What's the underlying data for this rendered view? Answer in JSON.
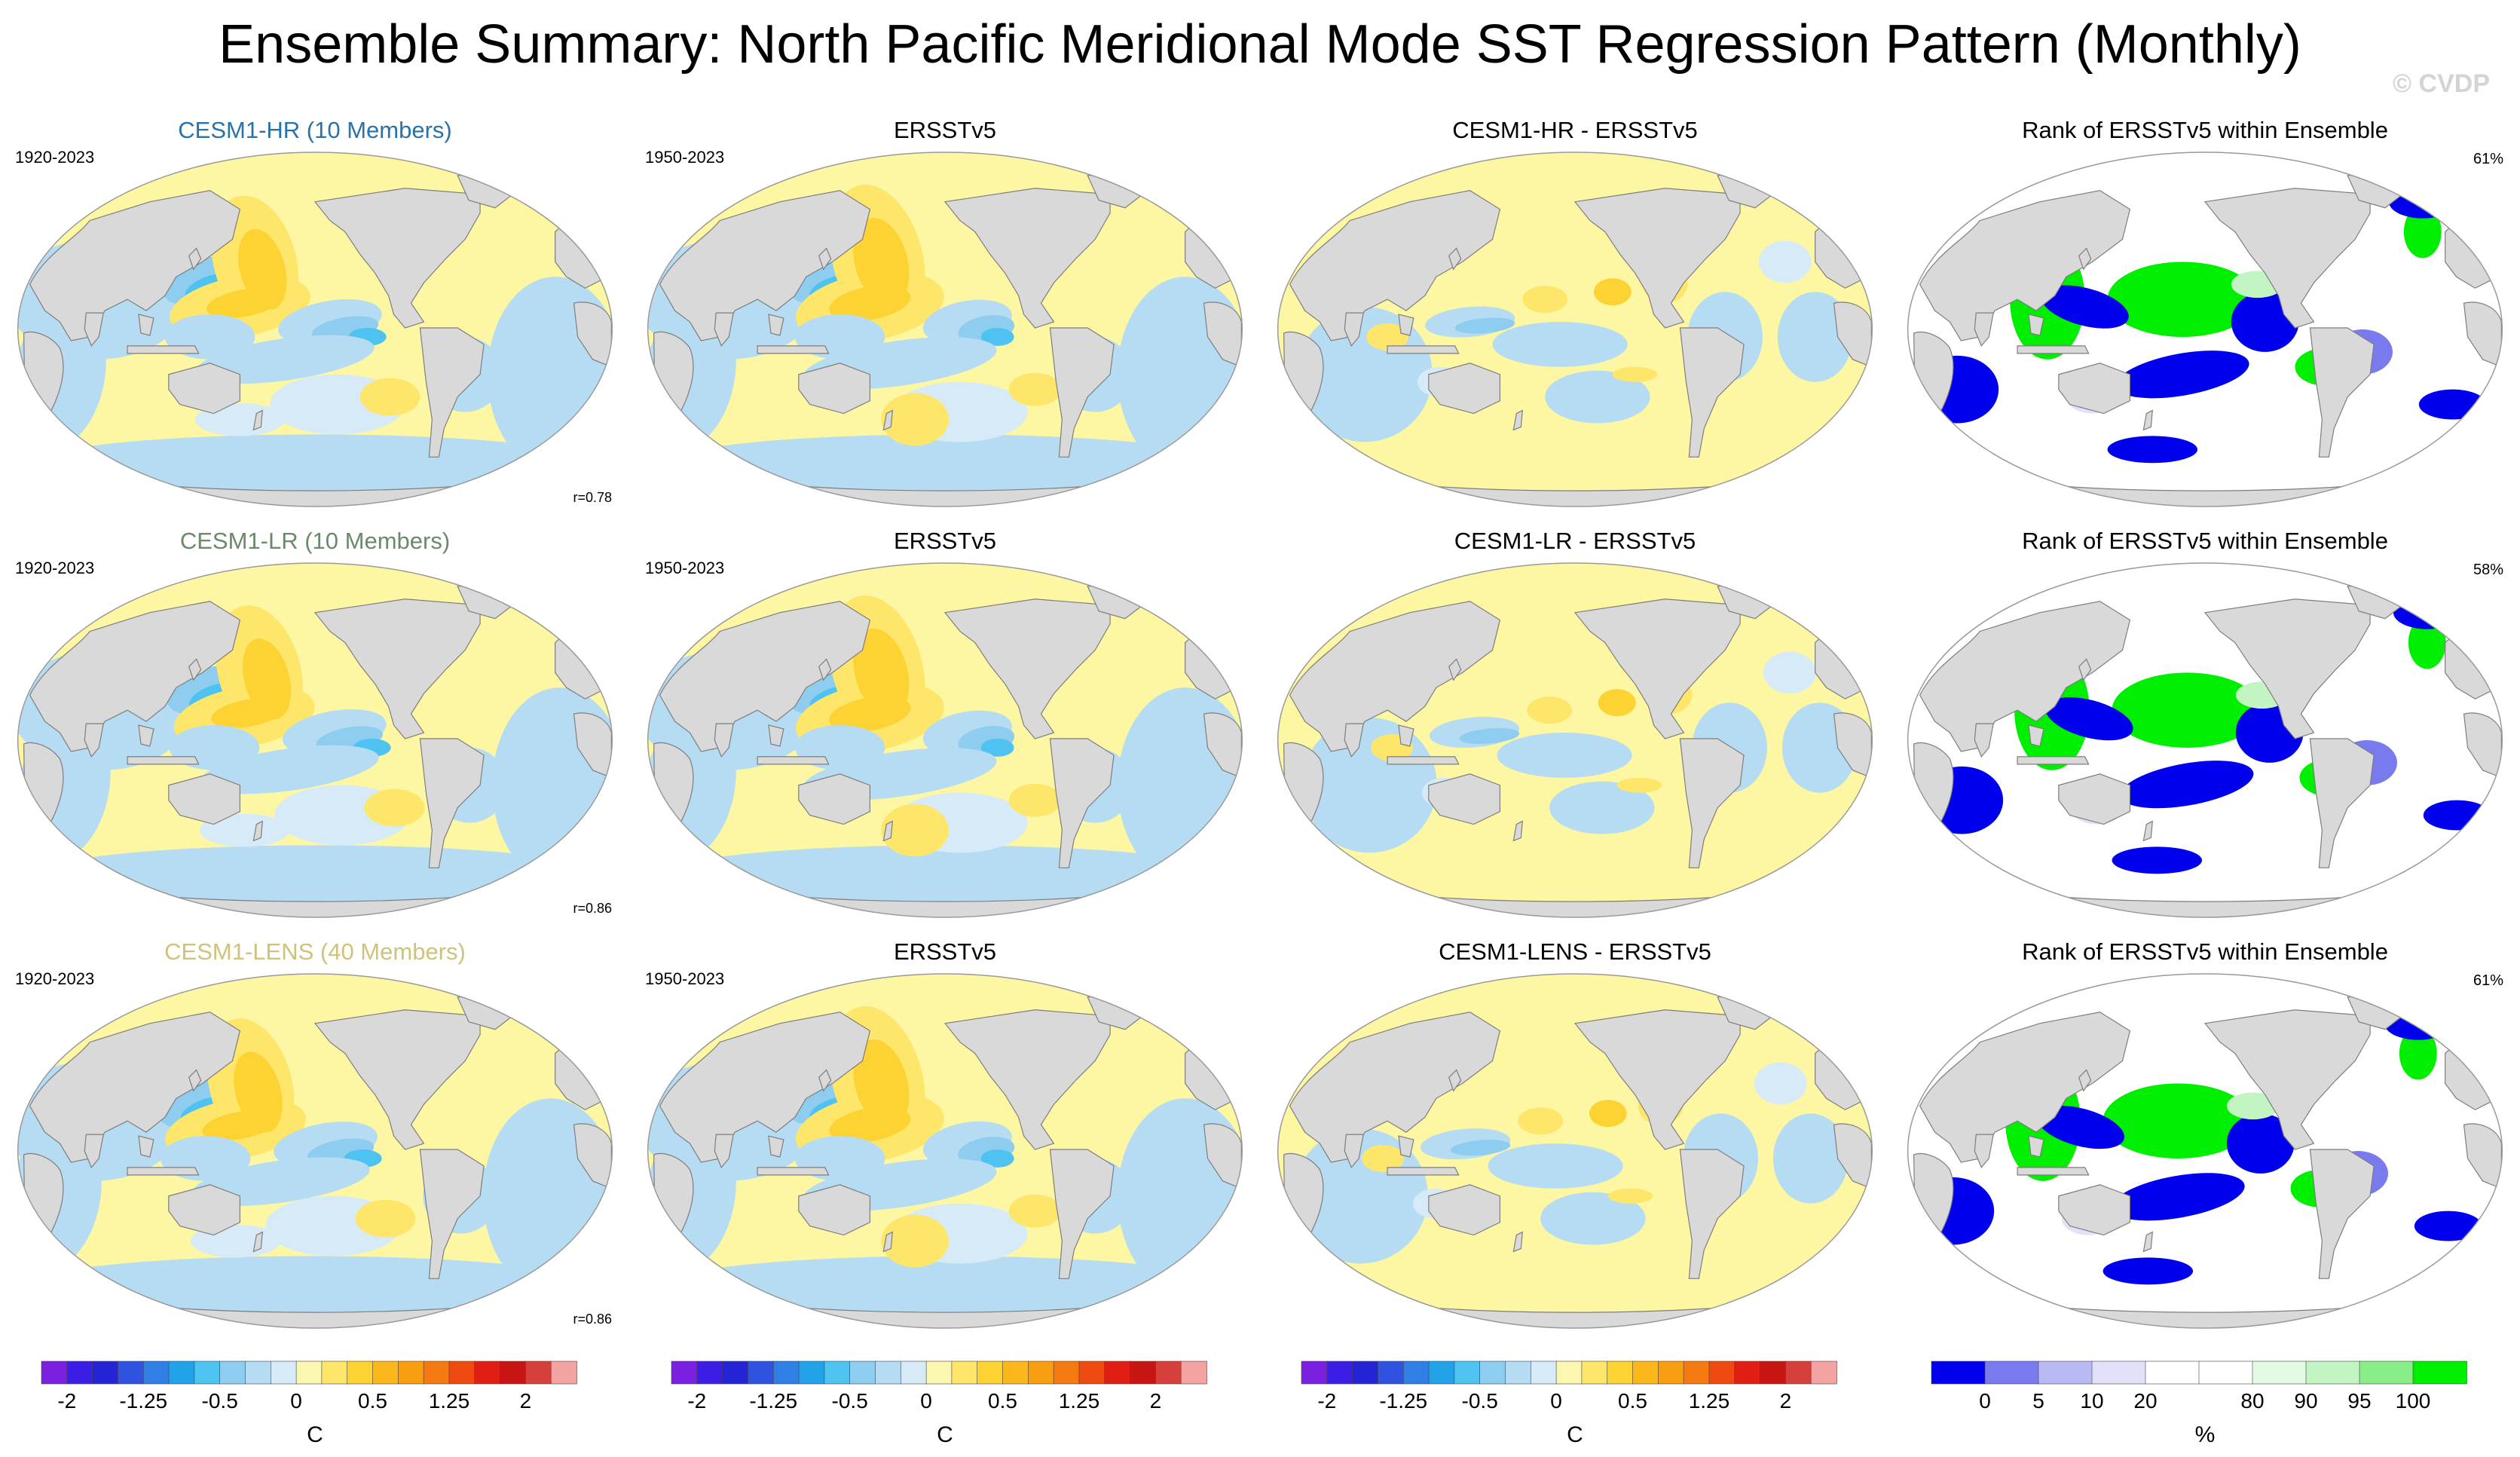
{
  "figure": {
    "title": "Ensemble Summary: North Pacific Meridional Mode SST Regression Pattern (Monthly)",
    "watermark": "© CVDP"
  },
  "colors": {
    "ocean_neutral": "#fdf6a3",
    "land": "#d9d9d9",
    "coast": "#7d7d7d",
    "rank_background": "#ffffff",
    "title_hr": "#2a72a8",
    "title_lr": "#6a8a6a",
    "title_lens": "#cfc27a"
  },
  "chart_data": {
    "type": "heatmap",
    "projection": "robinson-like",
    "rows": [
      {
        "id": "hr",
        "model_title": "CESM1-HR (10 Members)",
        "model_title_color": "#2a72a8",
        "model_period": "1920-2023",
        "pattern_correlation": "r=0.78",
        "obs_title": "ERSSTv5",
        "obs_period": "1950-2023",
        "diff_title": "CESM1-HR - ERSSTv5",
        "rank_title": "Rank of ERSSTv5 within Ensemble",
        "rank_percent": "61%"
      },
      {
        "id": "lr",
        "model_title": "CESM1-LR (10 Members)",
        "model_title_color": "#6a8a6a",
        "model_period": "1920-2023",
        "pattern_correlation": "r=0.86",
        "obs_title": "ERSSTv5",
        "obs_period": "1950-2023",
        "diff_title": "CESM1-LR - ERSSTv5",
        "rank_title": "Rank of ERSSTv5 within Ensemble",
        "rank_percent": "58%"
      },
      {
        "id": "lens",
        "model_title": "CESM1-LENS (40 Members)",
        "model_title_color": "#cfc27a",
        "model_period": "1920-2023",
        "pattern_correlation": "r=0.86",
        "obs_title": "ERSSTv5",
        "obs_period": "1950-2023",
        "diff_title": "CESM1-LENS - ERSSTv5",
        "rank_title": "Rank of ERSSTv5 within Ensemble",
        "rank_percent": "61%"
      }
    ],
    "sst_colorbar": {
      "unit": "C",
      "colors": [
        "#7b1fe0",
        "#3a1ee6",
        "#2424d6",
        "#2f52e0",
        "#2f7fe6",
        "#22a2e9",
        "#4ec2f0",
        "#8ecdef",
        "#b5dcf2",
        "#d6ebf7",
        "#fbf6b0",
        "#fde66a",
        "#fdd233",
        "#fcb81a",
        "#f99d11",
        "#f57a12",
        "#ee4a12",
        "#e01e14",
        "#c91414",
        "#d6403c",
        "#f4a3a3"
      ],
      "tick_labels": [
        "-2",
        "-1.25",
        "-0.5",
        "0",
        "0.5",
        "1.25",
        "2"
      ],
      "tick_boundaries": [
        1,
        4,
        7,
        10,
        13,
        16,
        19
      ]
    },
    "rank_colorbar": {
      "unit": "%",
      "colors": [
        "#0000ee",
        "#7a7aef",
        "#b9b9f4",
        "#e1e1f9",
        "#ffffff",
        "#ffffff",
        "#e2fbe2",
        "#c2f5c2",
        "#88ee88",
        "#00ee00"
      ],
      "tick_labels": [
        "0",
        "5",
        "10",
        "20",
        "80",
        "90",
        "95",
        "100"
      ],
      "tick_boundaries": [
        1,
        2,
        3,
        4,
        6,
        7,
        8,
        9
      ]
    }
  }
}
